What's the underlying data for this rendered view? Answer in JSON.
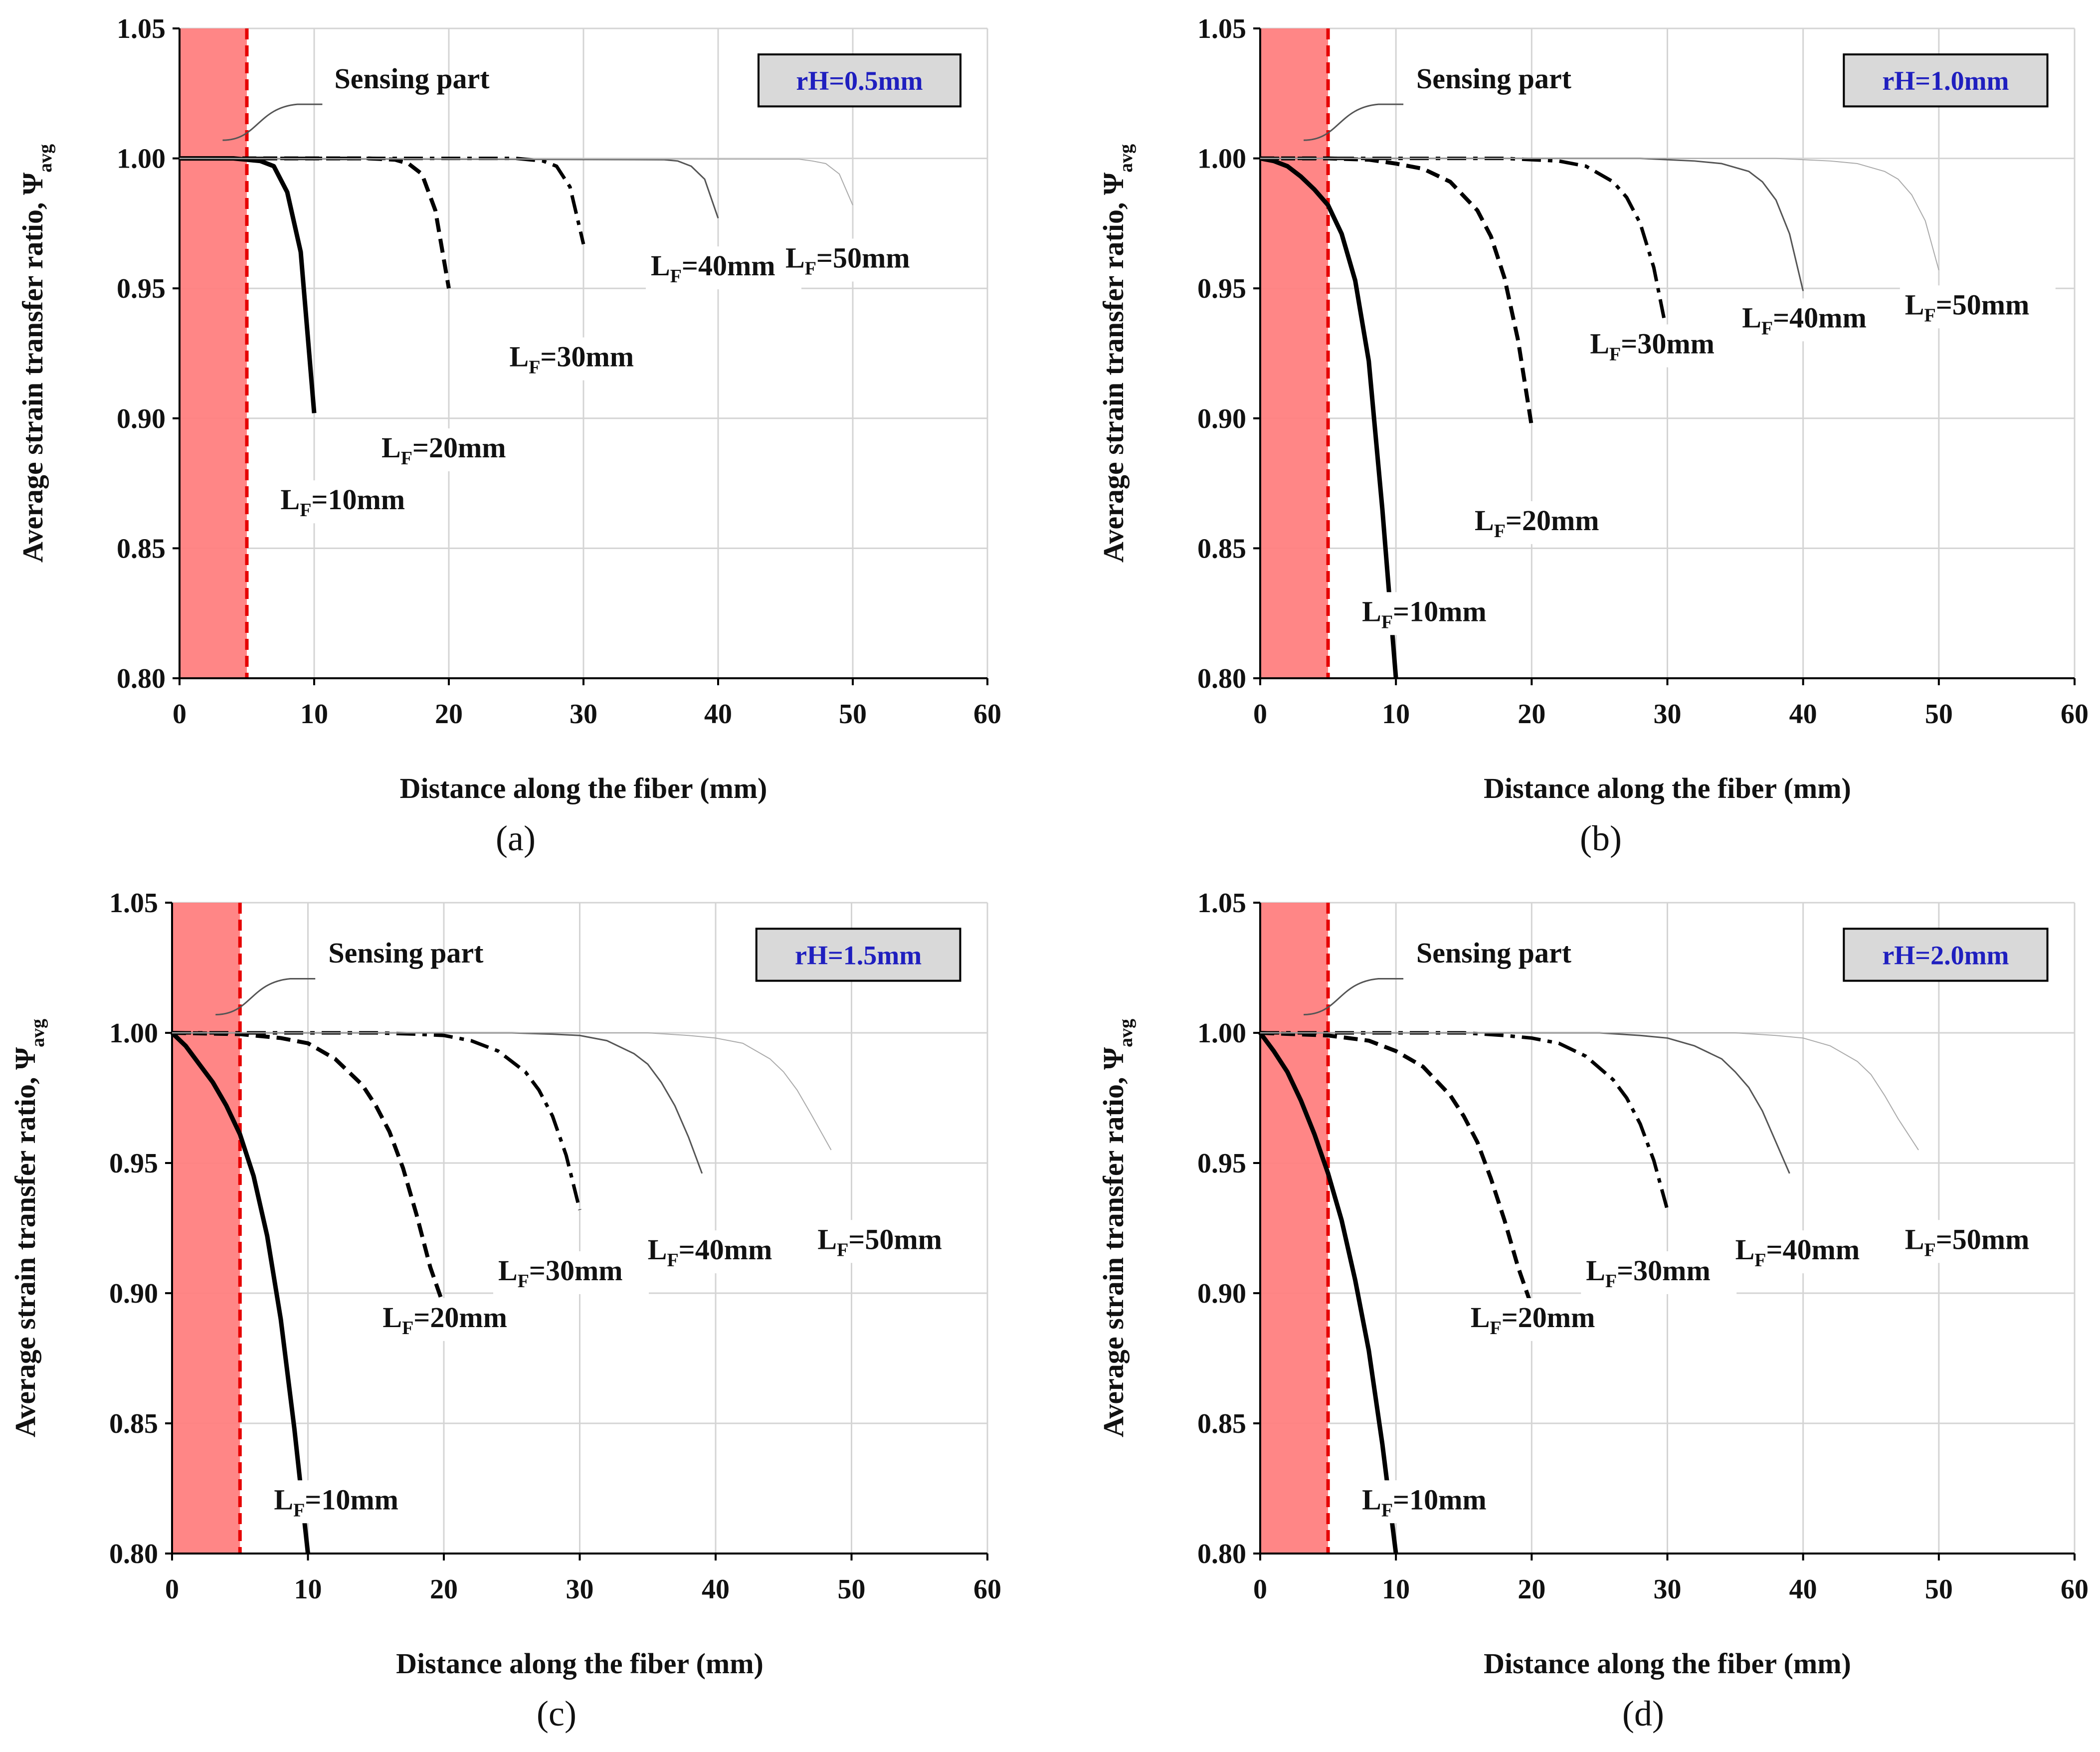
{
  "colors": {
    "sensing_fill": "#ff8080",
    "sensing_line": "#e60000",
    "rh_box_fill": "#d9d9d9",
    "rh_text": "#1f1fbf",
    "grid": "#d4d4d4",
    "series_dark": "#000000",
    "series_gray": "#555555",
    "series_light": "#aaaaaa"
  },
  "chart_data": [
    {
      "type": "line",
      "caption": "(a)",
      "badge": "rH=0.5mm",
      "sensing_label": "Sensing part",
      "sensing_boundary_x": 5,
      "xlabel": "Distance along the fiber (mm)",
      "ylabel_main": "Average strain transfer ratio, Ψ",
      "ylabel_sub": "avg",
      "xlim": [
        0,
        60
      ],
      "ylim": [
        0.8,
        1.05
      ],
      "xticks": [
        "0",
        "10",
        "20",
        "30",
        "40",
        "50",
        "60"
      ],
      "yticks": [
        "0.80",
        "0.85",
        "0.90",
        "0.95",
        "1.00",
        "1.05"
      ],
      "series": [
        {
          "name": "LF=10mm",
          "label_main": "L",
          "label_sub": "F",
          "label_rest": "=10mm",
          "x": [
            0,
            4,
            5,
            6,
            7,
            8,
            9,
            10
          ],
          "y": [
            1.0,
            1.0,
            0.9995,
            0.999,
            0.997,
            0.987,
            0.964,
            0.902
          ]
        },
        {
          "name": "LF=20mm",
          "label_main": "L",
          "label_sub": "F",
          "label_rest": "=20mm",
          "x": [
            0,
            14,
            16,
            17,
            18,
            19,
            20
          ],
          "y": [
            1.0,
            1.0,
            0.9995,
            0.998,
            0.994,
            0.98,
            0.95
          ]
        },
        {
          "name": "LF=30mm",
          "label_main": "L",
          "label_sub": "F",
          "label_rest": "=30mm",
          "x": [
            0,
            25,
            26,
            27,
            28,
            29,
            30
          ],
          "y": [
            1.0,
            1.0,
            0.9995,
            0.999,
            0.997,
            0.989,
            0.967
          ]
        },
        {
          "name": "LF=40mm",
          "label_main": "L",
          "label_sub": "F",
          "label_rest": "=40mm",
          "x": [
            0,
            36,
            37,
            38,
            39,
            40
          ],
          "y": [
            1.0,
            0.9995,
            0.999,
            0.997,
            0.992,
            0.977
          ]
        },
        {
          "name": "LF=50mm",
          "label_main": "L",
          "label_sub": "F",
          "label_rest": "=50mm",
          "x": [
            0,
            46,
            47,
            48,
            49,
            50
          ],
          "y": [
            1.0,
            0.9997,
            0.999,
            0.998,
            0.994,
            0.982
          ]
        }
      ]
    },
    {
      "type": "line",
      "caption": "(b)",
      "badge": "rH=1.0mm",
      "sensing_label": "Sensing part",
      "sensing_boundary_x": 5,
      "xlabel": "Distance along the fiber (mm)",
      "ylabel_main": "Average strain transfer ratio, Ψ",
      "ylabel_sub": "avg",
      "xlim": [
        0,
        60
      ],
      "ylim": [
        0.8,
        1.05
      ],
      "xticks": [
        "0",
        "10",
        "20",
        "30",
        "40",
        "50",
        "60"
      ],
      "yticks": [
        "0.80",
        "0.85",
        "0.90",
        "0.95",
        "1.00",
        "1.05"
      ],
      "series": [
        {
          "name": "LF=10mm",
          "label_main": "L",
          "label_sub": "F",
          "label_rest": "=10mm",
          "x": [
            0,
            1,
            2,
            3,
            4,
            5,
            6,
            7,
            8,
            9,
            10
          ],
          "y": [
            1.0,
            0.999,
            0.997,
            0.993,
            0.988,
            0.982,
            0.971,
            0.953,
            0.922,
            0.865,
            0.8
          ]
        },
        {
          "name": "LF=20mm",
          "label_main": "L",
          "label_sub": "F",
          "label_rest": "=20mm",
          "x": [
            0,
            5,
            8,
            10,
            12,
            14,
            16,
            17,
            18,
            19,
            20
          ],
          "y": [
            1.0,
            1.0,
            0.9995,
            0.998,
            0.996,
            0.991,
            0.98,
            0.97,
            0.954,
            0.93,
            0.897
          ]
        },
        {
          "name": "LF=30mm",
          "label_main": "L",
          "label_sub": "F",
          "label_rest": "=30mm",
          "x": [
            0,
            18,
            20,
            22,
            24,
            26,
            27,
            28,
            29,
            30
          ],
          "y": [
            1.0,
            1.0,
            0.9995,
            0.999,
            0.997,
            0.991,
            0.985,
            0.975,
            0.958,
            0.932
          ]
        },
        {
          "name": "LF=40mm",
          "label_main": "L",
          "label_sub": "F",
          "label_rest": "=40mm",
          "x": [
            0,
            28,
            32,
            34,
            36,
            37,
            38,
            39,
            40
          ],
          "y": [
            1.0,
            1.0,
            0.999,
            0.998,
            0.995,
            0.991,
            0.984,
            0.971,
            0.949
          ]
        },
        {
          "name": "LF=50mm",
          "label_main": "L",
          "label_sub": "F",
          "label_rest": "=50mm",
          "x": [
            0,
            38,
            42,
            44,
            46,
            47,
            48,
            49,
            50
          ],
          "y": [
            1.0,
            1.0,
            0.999,
            0.998,
            0.995,
            0.992,
            0.986,
            0.976,
            0.957
          ]
        }
      ]
    },
    {
      "type": "line",
      "caption": "(c)",
      "badge": "rH=1.5mm",
      "sensing_label": "Sensing part",
      "sensing_boundary_x": 5,
      "xlabel": "Distance along the fiber (mm)",
      "ylabel_main": "Average strain transfer ratio, Ψ",
      "ylabel_sub": "avg",
      "xlim": [
        0,
        60
      ],
      "ylim": [
        0.8,
        1.05
      ],
      "xticks": [
        "0",
        "10",
        "20",
        "30",
        "40",
        "50",
        "60"
      ],
      "yticks": [
        "0.80",
        "0.85",
        "0.90",
        "0.95",
        "1.00",
        "1.05"
      ],
      "series": [
        {
          "name": "LF=10mm",
          "label_main": "L",
          "label_sub": "F",
          "label_rest": "=10mm",
          "x": [
            0,
            1,
            2,
            3,
            4,
            5,
            6,
            7,
            8,
            9,
            10
          ],
          "y": [
            1.0,
            0.995,
            0.988,
            0.981,
            0.972,
            0.961,
            0.945,
            0.922,
            0.89,
            0.848,
            0.8
          ]
        },
        {
          "name": "LF=20mm",
          "label_main": "L",
          "label_sub": "F",
          "label_rest": "=20mm",
          "x": [
            0,
            5,
            8,
            10,
            12,
            14,
            15,
            16,
            17,
            18,
            19,
            20
          ],
          "y": [
            1.0,
            0.9995,
            0.998,
            0.996,
            0.99,
            0.98,
            0.972,
            0.962,
            0.948,
            0.93,
            0.91,
            0.895
          ]
        },
        {
          "name": "LF=30mm",
          "label_main": "L",
          "label_sub": "F",
          "label_rest": "=30mm",
          "x": [
            0,
            15,
            18,
            20,
            22,
            24,
            26,
            27,
            28,
            29,
            30
          ],
          "y": [
            1.0,
            1.0,
            0.9995,
            0.999,
            0.997,
            0.993,
            0.985,
            0.978,
            0.968,
            0.953,
            0.932
          ]
        },
        {
          "name": "LF=40mm",
          "label_main": "L",
          "label_sub": "F",
          "label_rest": "=40mm",
          "x": [
            0,
            25,
            28,
            30,
            32,
            34,
            35,
            36,
            37,
            38,
            39
          ],
          "y": [
            1.0,
            1.0,
            0.9995,
            0.999,
            0.997,
            0.992,
            0.988,
            0.981,
            0.972,
            0.96,
            0.946
          ]
        },
        {
          "name": "LF=50mm",
          "label_main": "L",
          "label_sub": "F",
          "label_rest": "=50mm",
          "x": [
            0,
            35,
            38,
            40,
            42,
            44,
            45,
            46,
            47,
            48.5
          ],
          "y": [
            1.0,
            1.0,
            0.999,
            0.998,
            0.996,
            0.99,
            0.985,
            0.978,
            0.969,
            0.955
          ]
        }
      ]
    },
    {
      "type": "line",
      "caption": "(d)",
      "badge": "rH=2.0mm",
      "sensing_label": "Sensing part",
      "sensing_boundary_x": 5,
      "xlabel": "Distance along the fiber (mm)",
      "ylabel_main": "Average strain transfer ratio, Ψ",
      "ylabel_sub": "avg",
      "xlim": [
        0,
        60
      ],
      "ylim": [
        0.8,
        1.05
      ],
      "xticks": [
        "0",
        "10",
        "20",
        "30",
        "40",
        "50",
        "60"
      ],
      "yticks": [
        "0.80",
        "0.85",
        "0.90",
        "0.95",
        "1.00",
        "1.05"
      ],
      "series": [
        {
          "name": "LF=10mm",
          "label_main": "L",
          "label_sub": "F",
          "label_rest": "=10mm",
          "x": [
            0,
            1,
            2,
            3,
            4,
            5,
            6,
            7,
            8,
            9,
            10
          ],
          "y": [
            1.0,
            0.993,
            0.985,
            0.974,
            0.961,
            0.946,
            0.928,
            0.905,
            0.878,
            0.842,
            0.8
          ]
        },
        {
          "name": "LF=20mm",
          "label_main": "L",
          "label_sub": "F",
          "label_rest": "=20mm",
          "x": [
            0,
            5,
            8,
            10,
            12,
            14,
            15,
            16,
            17,
            18,
            19,
            20
          ],
          "y": [
            1.0,
            0.999,
            0.997,
            0.993,
            0.987,
            0.976,
            0.968,
            0.958,
            0.944,
            0.928,
            0.91,
            0.895
          ]
        },
        {
          "name": "LF=30mm",
          "label_main": "L",
          "label_sub": "F",
          "label_rest": "=30mm",
          "x": [
            0,
            15,
            18,
            20,
            22,
            24,
            26,
            27,
            28,
            29,
            30
          ],
          "y": [
            1.0,
            1.0,
            0.999,
            0.998,
            0.996,
            0.991,
            0.982,
            0.975,
            0.965,
            0.951,
            0.932
          ]
        },
        {
          "name": "LF=40mm",
          "label_main": "L",
          "label_sub": "F",
          "label_rest": "=40mm",
          "x": [
            0,
            25,
            28,
            30,
            32,
            34,
            35,
            36,
            37,
            38,
            39
          ],
          "y": [
            1.0,
            1.0,
            0.999,
            0.998,
            0.995,
            0.99,
            0.985,
            0.979,
            0.97,
            0.958,
            0.946
          ]
        },
        {
          "name": "LF=50mm",
          "label_main": "L",
          "label_sub": "F",
          "label_rest": "=50mm",
          "x": [
            0,
            35,
            38,
            40,
            42,
            44,
            45,
            46,
            47,
            48.5
          ],
          "y": [
            1.0,
            1.0,
            0.999,
            0.998,
            0.995,
            0.989,
            0.984,
            0.976,
            0.967,
            0.955
          ]
        }
      ]
    }
  ]
}
